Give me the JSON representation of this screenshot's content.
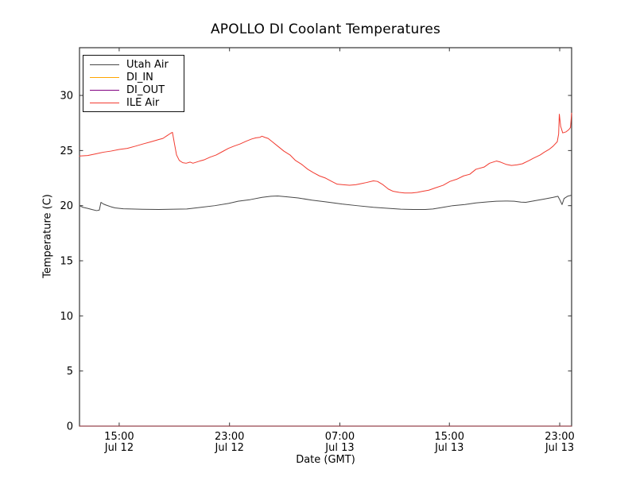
{
  "chart_data": {
    "type": "line",
    "title": "APOLLO DI Coolant Temperatures",
    "xlabel": "Date (GMT)",
    "ylabel": "Temperature (C)",
    "grid": false,
    "legend_position": "upper left",
    "ylim": [
      0,
      34.33
    ],
    "xlim_hours": [
      0,
      36
    ],
    "x_unit": "hours from plot start (≈ Jul 12 12:00 GMT to Jul 13 24:00 GMT)",
    "y_ticks": [
      0,
      5,
      10,
      15,
      20,
      25,
      30
    ],
    "x_ticks": [
      {
        "t": 2.903,
        "time": "15:00",
        "date": "Jul 12"
      },
      {
        "t": 10.974,
        "time": "23:00",
        "date": "Jul 12"
      },
      {
        "t": 19.045,
        "time": "07:00",
        "date": "Jul 13"
      },
      {
        "t": 27.058,
        "time": "15:00",
        "date": "Jul 13"
      },
      {
        "t": 35.129,
        "time": "23:00",
        "date": "Jul 13"
      }
    ],
    "series": [
      {
        "name": "Utah Air",
        "color": "#474747",
        "width": 1.0,
        "opacity": 1,
        "points": [
          [
            0,
            20.0
          ],
          [
            0.25,
            19.85
          ],
          [
            0.6,
            19.75
          ],
          [
            0.9,
            19.65
          ],
          [
            1.25,
            19.55
          ],
          [
            1.45,
            19.6
          ],
          [
            1.57,
            20.3
          ],
          [
            1.75,
            20.15
          ],
          [
            1.95,
            20.05
          ],
          [
            2.3,
            19.9
          ],
          [
            2.6,
            19.8
          ],
          [
            3.2,
            19.72
          ],
          [
            3.8,
            19.7
          ],
          [
            4.6,
            19.67
          ],
          [
            5.8,
            19.65
          ],
          [
            7.0,
            19.68
          ],
          [
            7.85,
            19.7
          ],
          [
            8.9,
            19.85
          ],
          [
            9.9,
            20.0
          ],
          [
            10.9,
            20.2
          ],
          [
            11.6,
            20.4
          ],
          [
            12.5,
            20.55
          ],
          [
            13.35,
            20.75
          ],
          [
            14.0,
            20.85
          ],
          [
            14.5,
            20.88
          ],
          [
            15.2,
            20.8
          ],
          [
            16.0,
            20.7
          ],
          [
            17.0,
            20.5
          ],
          [
            18.0,
            20.35
          ],
          [
            19.2,
            20.15
          ],
          [
            20.3,
            20.0
          ],
          [
            21.5,
            19.85
          ],
          [
            22.65,
            19.75
          ],
          [
            23.5,
            19.68
          ],
          [
            24.4,
            19.65
          ],
          [
            25.3,
            19.65
          ],
          [
            25.85,
            19.7
          ],
          [
            26.6,
            19.85
          ],
          [
            27.3,
            20.0
          ],
          [
            28.2,
            20.1
          ],
          [
            29.0,
            20.25
          ],
          [
            29.9,
            20.35
          ],
          [
            30.5,
            20.4
          ],
          [
            31.3,
            20.42
          ],
          [
            31.8,
            20.4
          ],
          [
            32.3,
            20.32
          ],
          [
            32.65,
            20.3
          ],
          [
            33.3,
            20.45
          ],
          [
            34.0,
            20.6
          ],
          [
            34.65,
            20.75
          ],
          [
            35.0,
            20.85
          ],
          [
            35.15,
            20.5
          ],
          [
            35.3,
            20.1
          ],
          [
            35.45,
            20.65
          ],
          [
            35.7,
            20.85
          ],
          [
            36,
            20.95
          ]
        ]
      },
      {
        "name": "DI_IN",
        "color": "#ffa500",
        "width": 1.0,
        "opacity": 0.8,
        "points": [
          [
            0,
            0
          ],
          [
            36,
            0
          ]
        ]
      },
      {
        "name": "DI_OUT",
        "color": "#800080",
        "width": 1.0,
        "opacity": 0.55,
        "points": [
          [
            0,
            0
          ],
          [
            36,
            0
          ]
        ]
      },
      {
        "name": "ILE Air",
        "color": "#f23b30",
        "width": 1.0,
        "opacity": 1,
        "points": [
          [
            0,
            24.5
          ],
          [
            0.6,
            24.55
          ],
          [
            1.2,
            24.7
          ],
          [
            1.75,
            24.85
          ],
          [
            2.3,
            24.95
          ],
          [
            2.9,
            25.1
          ],
          [
            3.5,
            25.2
          ],
          [
            4.1,
            25.4
          ],
          [
            4.65,
            25.6
          ],
          [
            5.25,
            25.8
          ],
          [
            5.8,
            26.0
          ],
          [
            6.1,
            26.1
          ],
          [
            6.4,
            26.35
          ],
          [
            6.65,
            26.55
          ],
          [
            6.8,
            26.65
          ],
          [
            6.95,
            25.6
          ],
          [
            7.1,
            24.6
          ],
          [
            7.3,
            24.1
          ],
          [
            7.55,
            23.9
          ],
          [
            7.8,
            23.85
          ],
          [
            8.1,
            23.95
          ],
          [
            8.3,
            23.85
          ],
          [
            8.55,
            23.95
          ],
          [
            8.8,
            24.05
          ],
          [
            9.1,
            24.15
          ],
          [
            9.55,
            24.4
          ],
          [
            10.0,
            24.6
          ],
          [
            10.45,
            24.9
          ],
          [
            10.9,
            25.2
          ],
          [
            11.3,
            25.4
          ],
          [
            11.75,
            25.6
          ],
          [
            12.2,
            25.85
          ],
          [
            12.6,
            26.05
          ],
          [
            12.9,
            26.15
          ],
          [
            13.2,
            26.2
          ],
          [
            13.35,
            26.3
          ],
          [
            13.55,
            26.2
          ],
          [
            13.8,
            26.1
          ],
          [
            14.1,
            25.8
          ],
          [
            14.5,
            25.4
          ],
          [
            14.95,
            24.95
          ],
          [
            15.4,
            24.6
          ],
          [
            15.8,
            24.1
          ],
          [
            16.25,
            23.75
          ],
          [
            16.7,
            23.3
          ],
          [
            17.1,
            23.0
          ],
          [
            17.55,
            22.7
          ],
          [
            18.0,
            22.5
          ],
          [
            18.45,
            22.2
          ],
          [
            18.85,
            21.95
          ],
          [
            19.3,
            21.9
          ],
          [
            19.75,
            21.85
          ],
          [
            20.2,
            21.9
          ],
          [
            20.6,
            22.0
          ],
          [
            21.0,
            22.1
          ],
          [
            21.5,
            22.25
          ],
          [
            21.8,
            22.2
          ],
          [
            22.2,
            21.9
          ],
          [
            22.6,
            21.5
          ],
          [
            22.95,
            21.3
          ],
          [
            23.4,
            21.2
          ],
          [
            23.8,
            21.15
          ],
          [
            24.3,
            21.15
          ],
          [
            24.7,
            21.2
          ],
          [
            25.1,
            21.3
          ],
          [
            25.55,
            21.4
          ],
          [
            26.0,
            21.6
          ],
          [
            26.6,
            21.85
          ],
          [
            27.1,
            22.2
          ],
          [
            27.6,
            22.4
          ],
          [
            28.1,
            22.7
          ],
          [
            28.55,
            22.85
          ],
          [
            29.0,
            23.3
          ],
          [
            29.6,
            23.5
          ],
          [
            30.0,
            23.85
          ],
          [
            30.5,
            24.05
          ],
          [
            30.8,
            23.95
          ],
          [
            31.2,
            23.75
          ],
          [
            31.6,
            23.65
          ],
          [
            32.0,
            23.7
          ],
          [
            32.4,
            23.8
          ],
          [
            32.9,
            24.1
          ],
          [
            33.2,
            24.3
          ],
          [
            33.7,
            24.6
          ],
          [
            34.0,
            24.85
          ],
          [
            34.35,
            25.1
          ],
          [
            34.65,
            25.4
          ],
          [
            34.95,
            25.8
          ],
          [
            35.05,
            26.5
          ],
          [
            35.1,
            28.3
          ],
          [
            35.2,
            27.2
          ],
          [
            35.35,
            26.6
          ],
          [
            35.6,
            26.7
          ],
          [
            35.8,
            26.9
          ],
          [
            35.92,
            27.1
          ],
          [
            36,
            28.4
          ]
        ]
      }
    ],
    "frame_color": "#333333"
  }
}
